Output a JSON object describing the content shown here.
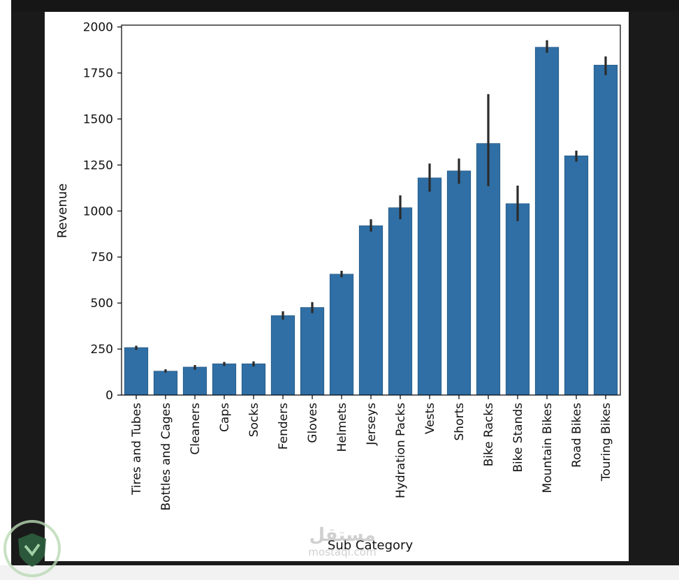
{
  "chart_data": {
    "type": "bar",
    "xlabel": "Sub Category",
    "ylabel": "Revenue",
    "ylim": [
      0,
      2010
    ],
    "yticks": [
      0,
      250,
      500,
      750,
      1000,
      1250,
      1500,
      1750,
      2000
    ],
    "grid": false,
    "bar_color": "#2f6fa5",
    "errorbar_color": "#2b2b2b",
    "categories": [
      "Tires and Tubes",
      "Bottles and Cages",
      "Cleaners",
      "Caps",
      "Socks",
      "Fenders",
      "Gloves",
      "Helmets",
      "Jerseys",
      "Hydration Packs",
      "Vests",
      "Shorts",
      "Bike Racks",
      "Bike Stands",
      "Mountain Bikes",
      "Road Bikes",
      "Touring Bikes"
    ],
    "values": [
      258,
      130,
      152,
      170,
      170,
      432,
      476,
      657,
      920,
      1018,
      1180,
      1218,
      1367,
      1040,
      1890,
      1300,
      1793
    ],
    "error_low": [
      245,
      122,
      138,
      158,
      155,
      410,
      445,
      640,
      888,
      955,
      1105,
      1148,
      1135,
      945,
      1860,
      1268,
      1738
    ],
    "error_high": [
      268,
      140,
      163,
      180,
      183,
      455,
      505,
      675,
      955,
      1085,
      1258,
      1285,
      1635,
      1138,
      1928,
      1328,
      1840
    ]
  },
  "watermark": {
    "main": "مستقل",
    "sub": "mostaql.com"
  },
  "colors": {
    "background": "#1a1a1a",
    "figure": "#ffffff"
  }
}
